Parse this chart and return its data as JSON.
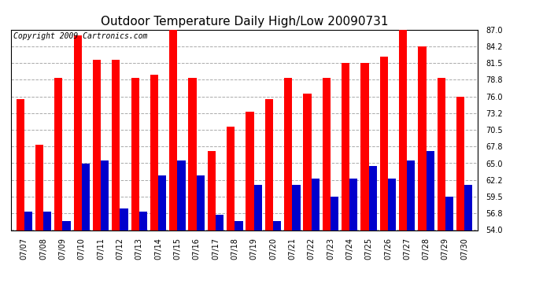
{
  "title": "Outdoor Temperature Daily High/Low 20090731",
  "copyright": "Copyright 2009 Cartronics.com",
  "dates": [
    "07/07",
    "07/08",
    "07/09",
    "07/10",
    "07/11",
    "07/12",
    "07/13",
    "07/14",
    "07/15",
    "07/16",
    "07/17",
    "07/18",
    "07/19",
    "07/20",
    "07/21",
    "07/22",
    "07/23",
    "07/24",
    "07/25",
    "07/26",
    "07/27",
    "07/28",
    "07/29",
    "07/30"
  ],
  "highs": [
    75.5,
    68.0,
    79.0,
    86.0,
    82.0,
    82.0,
    79.0,
    79.5,
    87.0,
    79.0,
    67.0,
    71.0,
    73.5,
    75.5,
    79.0,
    76.5,
    79.0,
    81.5,
    81.5,
    82.5,
    87.0,
    84.2,
    79.0,
    76.0
  ],
  "lows": [
    57.0,
    57.0,
    55.5,
    65.0,
    65.5,
    57.5,
    57.0,
    63.0,
    65.5,
    63.0,
    56.5,
    55.5,
    61.5,
    55.5,
    61.5,
    62.5,
    59.5,
    62.5,
    64.5,
    62.5,
    65.5,
    67.0,
    59.5,
    61.5
  ],
  "high_color": "#ff0000",
  "low_color": "#0000cc",
  "background_color": "#ffffff",
  "grid_color": "#aaaaaa",
  "ymin": 54.0,
  "ymax": 87.0,
  "yticks": [
    54.0,
    56.8,
    59.5,
    62.2,
    65.0,
    67.8,
    70.5,
    73.2,
    76.0,
    78.8,
    81.5,
    84.2,
    87.0
  ],
  "title_fontsize": 11,
  "copyright_fontsize": 7,
  "tick_fontsize": 7,
  "bar_width": 0.42
}
